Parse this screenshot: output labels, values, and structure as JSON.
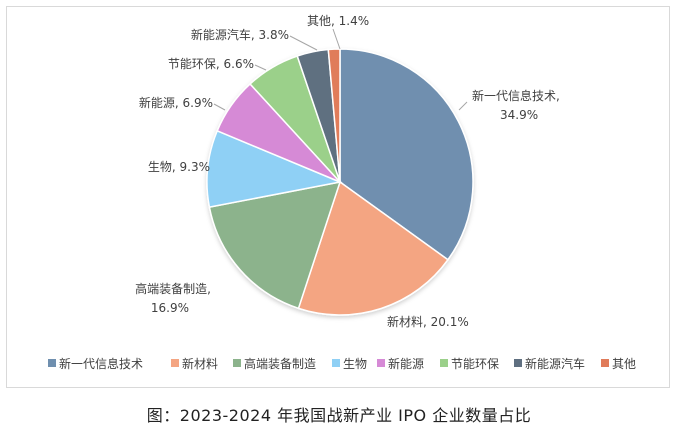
{
  "chart_data": {
    "type": "pie",
    "title": "",
    "categories": [
      "新一代信息技术",
      "新材料",
      "高端装备制造",
      "生物",
      "新能源",
      "节能环保",
      "新能源汽车",
      "其他"
    ],
    "values": [
      34.9,
      20.1,
      16.9,
      9.3,
      6.9,
      6.6,
      3.8,
      1.4
    ],
    "value_suffix": "%",
    "data_labels": [
      "新一代信息技术, 34.9%",
      "新材料, 20.1%",
      "高端装备制造, 16.9%",
      "生物, 9.3%",
      "新能源, 6.9%",
      "节能环保, 6.6%",
      "新能源汽车, 3.8%",
      "其他, 1.4%"
    ],
    "colors": [
      "#6f8faf",
      "#f4a582",
      "#8cb38c",
      "#8fd0f5",
      "#d68ad6",
      "#9bd08a",
      "#5f6f80",
      "#e07b5a"
    ],
    "legend_position": "bottom"
  },
  "caption": "图：2023-2024 年我国战新产业 IPO 企业数量占比"
}
